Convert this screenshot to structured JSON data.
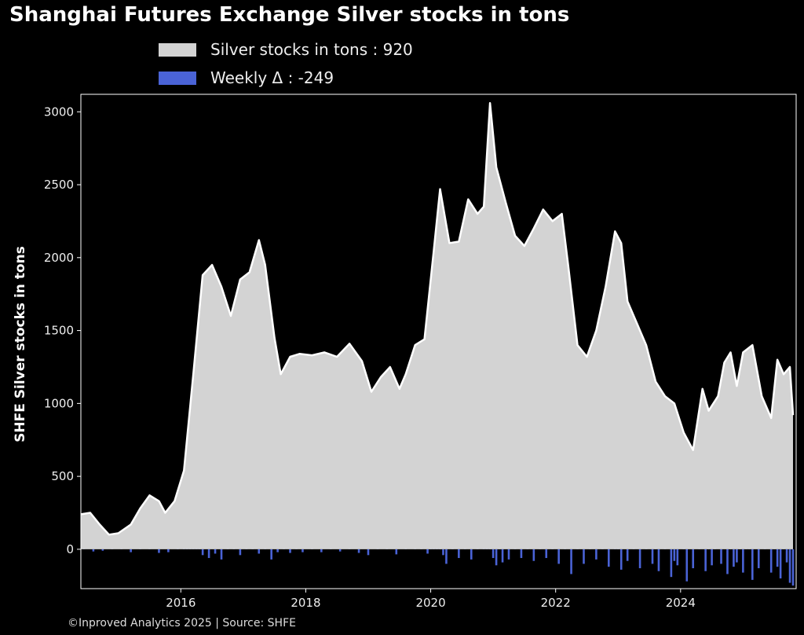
{
  "title": "Shanghai Futures Exchange Silver stocks in tons",
  "footer": "©Inproved Analytics 2025 | Source: SHFE",
  "colors": {
    "background": "#000000",
    "area_fill": "#d3d3d3",
    "area_line": "#ffffff",
    "bars": "#4a63d6",
    "axes": "#ffffff"
  },
  "chart_data": {
    "type": "area",
    "title": "Shanghai Futures Exchange Silver stocks in tons",
    "ylabel": "SHFE Silver stocks in tons",
    "xlabel": "",
    "xlim": [
      2014.4,
      2025.85
    ],
    "ylim": [
      -270,
      3120
    ],
    "x_ticks": [
      2016,
      2018,
      2020,
      2022,
      2024
    ],
    "x_tick_labels": [
      "2016",
      "2018",
      "2020",
      "2022",
      "2024"
    ],
    "y_ticks": [
      0,
      500,
      1000,
      1500,
      2000,
      2500,
      3000
    ],
    "y_tick_labels": [
      "0",
      "500",
      "1000",
      "1500",
      "2000",
      "2500",
      "3000"
    ],
    "grid": false,
    "legend_position": "top",
    "series": [
      {
        "name": "Silver stocks in tons : 920",
        "type": "area",
        "x": [
          2014.4,
          2014.55,
          2014.7,
          2014.85,
          2015.0,
          2015.2,
          2015.35,
          2015.5,
          2015.65,
          2015.75,
          2015.9,
          2016.05,
          2016.2,
          2016.35,
          2016.5,
          2016.65,
          2016.8,
          2016.95,
          2017.1,
          2017.25,
          2017.35,
          2017.5,
          2017.6,
          2017.75,
          2017.9,
          2018.1,
          2018.3,
          2018.5,
          2018.7,
          2018.9,
          2019.05,
          2019.2,
          2019.35,
          2019.5,
          2019.6,
          2019.75,
          2019.9,
          2020.05,
          2020.15,
          2020.3,
          2020.45,
          2020.6,
          2020.75,
          2020.85,
          2020.95,
          2021.05,
          2021.2,
          2021.35,
          2021.5,
          2021.65,
          2021.8,
          2021.95,
          2022.1,
          2022.2,
          2022.35,
          2022.5,
          2022.65,
          2022.8,
          2022.95,
          2023.05,
          2023.15,
          2023.3,
          2023.45,
          2023.6,
          2023.75,
          2023.9,
          2024.05,
          2024.2,
          2024.35,
          2024.45,
          2024.6,
          2024.7,
          2024.8,
          2024.9,
          2025.0,
          2025.15,
          2025.3,
          2025.45,
          2025.55,
          2025.65,
          2025.75,
          2025.8
        ],
        "values": [
          240,
          250,
          170,
          100,
          110,
          170,
          280,
          370,
          330,
          250,
          330,
          540,
          1200,
          1880,
          1950,
          1800,
          1600,
          1850,
          1900,
          2120,
          1950,
          1450,
          1200,
          1320,
          1340,
          1330,
          1350,
          1320,
          1410,
          1290,
          1080,
          1180,
          1250,
          1100,
          1200,
          1400,
          1440,
          2050,
          2470,
          2100,
          2110,
          2400,
          2300,
          2350,
          3060,
          2620,
          2380,
          2150,
          2080,
          2200,
          2330,
          2250,
          2300,
          1950,
          1400,
          1320,
          1500,
          1800,
          2180,
          2100,
          1700,
          1550,
          1400,
          1150,
          1050,
          1000,
          800,
          680,
          1100,
          950,
          1050,
          1280,
          1350,
          1120,
          1350,
          1400,
          1050,
          900,
          1300,
          1200,
          1250,
          920
        ]
      },
      {
        "name": "Weekly Δ : -249",
        "type": "bar",
        "x": [
          2014.45,
          2014.6,
          2014.75,
          2014.9,
          2015.05,
          2015.2,
          2015.35,
          2015.5,
          2015.65,
          2015.8,
          2015.95,
          2016.05,
          2016.1,
          2016.15,
          2016.2,
          2016.25,
          2016.3,
          2016.35,
          2016.45,
          2016.55,
          2016.65,
          2016.75,
          2016.85,
          2016.95,
          2017.05,
          2017.15,
          2017.25,
          2017.35,
          2017.45,
          2017.55,
          2017.65,
          2017.75,
          2017.85,
          2017.95,
          2018.1,
          2018.25,
          2018.4,
          2018.55,
          2018.7,
          2018.85,
          2019.0,
          2019.15,
          2019.3,
          2019.45,
          2019.6,
          2019.75,
          2019.85,
          2019.95,
          2020.0,
          2020.05,
          2020.1,
          2020.15,
          2020.2,
          2020.25,
          2020.35,
          2020.45,
          2020.55,
          2020.65,
          2020.75,
          2020.85,
          2020.9,
          2020.95,
          2021.0,
          2021.05,
          2021.1,
          2021.15,
          2021.25,
          2021.35,
          2021.45,
          2021.55,
          2021.65,
          2021.75,
          2021.85,
          2021.95,
          2022.05,
          2022.15,
          2022.25,
          2022.35,
          2022.45,
          2022.55,
          2022.65,
          2022.75,
          2022.85,
          2022.95,
          2023.0,
          2023.05,
          2023.15,
          2023.25,
          2023.35,
          2023.45,
          2023.55,
          2023.6,
          2023.65,
          2023.75,
          2023.85,
          2023.9,
          2023.95,
          2024.05,
          2024.1,
          2024.2,
          2024.3,
          2024.4,
          2024.45,
          2024.5,
          2024.55,
          2024.65,
          2024.75,
          2024.8,
          2024.85,
          2024.9,
          2024.95,
          2025.0,
          2025.05,
          2025.1,
          2025.15,
          2025.25,
          2025.35,
          2025.45,
          2025.5,
          2025.55,
          2025.6,
          2025.65,
          2025.7,
          2025.75,
          2025.8
        ],
        "values": [
          25,
          -15,
          -10,
          20,
          15,
          -20,
          25,
          30,
          -25,
          -20,
          35,
          80,
          120,
          160,
          60,
          90,
          110,
          -40,
          -60,
          -30,
          -70,
          30,
          60,
          -40,
          70,
          40,
          -30,
          50,
          -70,
          -20,
          20,
          -25,
          30,
          -20,
          25,
          -20,
          20,
          -15,
          30,
          -25,
          -40,
          25,
          30,
          -35,
          20,
          40,
          60,
          -30,
          90,
          110,
          70,
          50,
          -40,
          -100,
          60,
          -60,
          40,
          -70,
          50,
          80,
          160,
          200,
          -60,
          -110,
          50,
          -90,
          -70,
          70,
          -60,
          60,
          -80,
          40,
          -60,
          70,
          -100,
          50,
          -170,
          60,
          -100,
          80,
          -70,
          110,
          -120,
          90,
          350,
          -140,
          -80,
          110,
          -130,
          60,
          -100,
          190,
          -150,
          80,
          -190,
          -80,
          -110,
          120,
          -220,
          -130,
          60,
          -150,
          370,
          -110,
          70,
          -100,
          -170,
          90,
          -120,
          -90,
          120,
          -160,
          130,
          110,
          -210,
          -130,
          70,
          -160,
          90,
          -120,
          -200,
          60,
          -90,
          -230,
          -249
        ]
      }
    ]
  }
}
